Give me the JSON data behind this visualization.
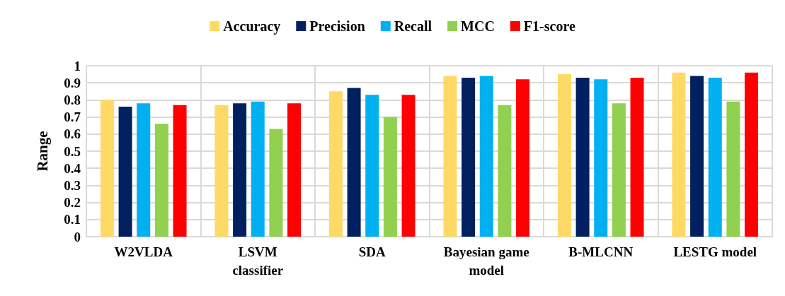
{
  "chart_data": {
    "type": "bar",
    "ylabel": "Range",
    "categories": [
      "W2VLDA",
      "LSVM\nclassifier",
      "SDA",
      "Bayesian game\nmodel",
      "B-MLCNN",
      "LESTG model"
    ],
    "series": [
      {
        "name": "Accuracy",
        "color": "#ffd966",
        "values": [
          0.8,
          0.77,
          0.85,
          0.94,
          0.95,
          0.96
        ]
      },
      {
        "name": "Precision",
        "color": "#002060",
        "values": [
          0.76,
          0.78,
          0.87,
          0.93,
          0.93,
          0.94
        ]
      },
      {
        "name": "Recall",
        "color": "#00b0f0",
        "values": [
          0.78,
          0.79,
          0.83,
          0.94,
          0.92,
          0.93
        ]
      },
      {
        "name": "MCC",
        "color": "#92d050",
        "values": [
          0.66,
          0.63,
          0.7,
          0.77,
          0.78,
          0.79
        ]
      },
      {
        "name": "F1-score",
        "color": "#ff0000",
        "values": [
          0.77,
          0.78,
          0.83,
          0.92,
          0.93,
          0.96
        ]
      }
    ],
    "ylim": [
      0,
      1
    ],
    "yticks": [
      0,
      0.1,
      0.2,
      0.3,
      0.4,
      0.5,
      0.6,
      0.7,
      0.8,
      0.9,
      1
    ],
    "grid": true,
    "legend": "top"
  }
}
